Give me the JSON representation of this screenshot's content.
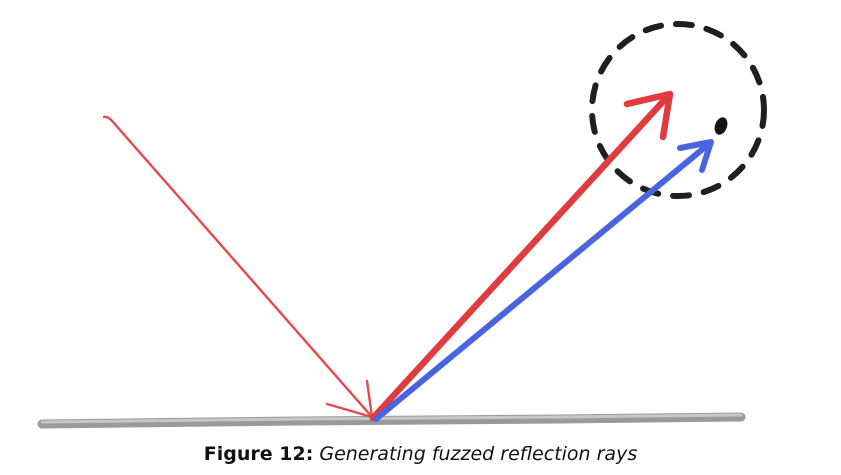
{
  "figure": {
    "caption_label": "Figure 12:",
    "caption_text": "Generating fuzzed reflection rays"
  },
  "colors": {
    "incident_ray": "#e8474b",
    "reflected_ray": "#e03c40",
    "fuzzed_ray": "#4a64e0",
    "surface": "#8a8a8a",
    "sphere": "#222222"
  }
}
